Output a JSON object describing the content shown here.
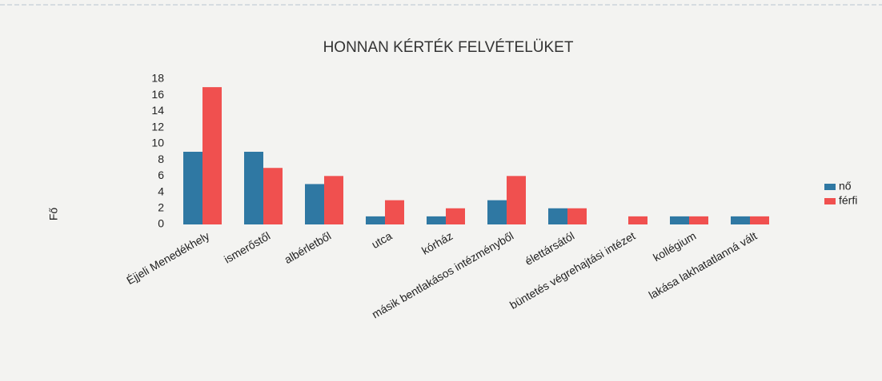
{
  "chart_data": {
    "type": "bar",
    "title": "HONNAN KÉRTÉK FELVÉTELÜKET",
    "y_label": "Fő",
    "categories": [
      "Éjjeli Menedékhely",
      "ismerőstől",
      "albérletből",
      "utca",
      "kórház",
      "másik bentlakásos intézményből",
      "élettársától",
      "büntetés végrehajtási intézet",
      "kollégium",
      "lakása lakhatatlanná vált"
    ],
    "series": [
      {
        "name": "nő",
        "color": "#2f78a3",
        "values": [
          9,
          9,
          5,
          1,
          1,
          3,
          2,
          0,
          1,
          1
        ]
      },
      {
        "name": "férfi",
        "color": "#f0504f",
        "values": [
          17,
          7,
          6,
          3,
          2,
          6,
          2,
          1,
          1,
          1
        ]
      }
    ],
    "ylim": [
      0,
      18
    ],
    "yticks": [
      0,
      2,
      4,
      6,
      8,
      10,
      12,
      14,
      16,
      18
    ],
    "legend": "right"
  }
}
